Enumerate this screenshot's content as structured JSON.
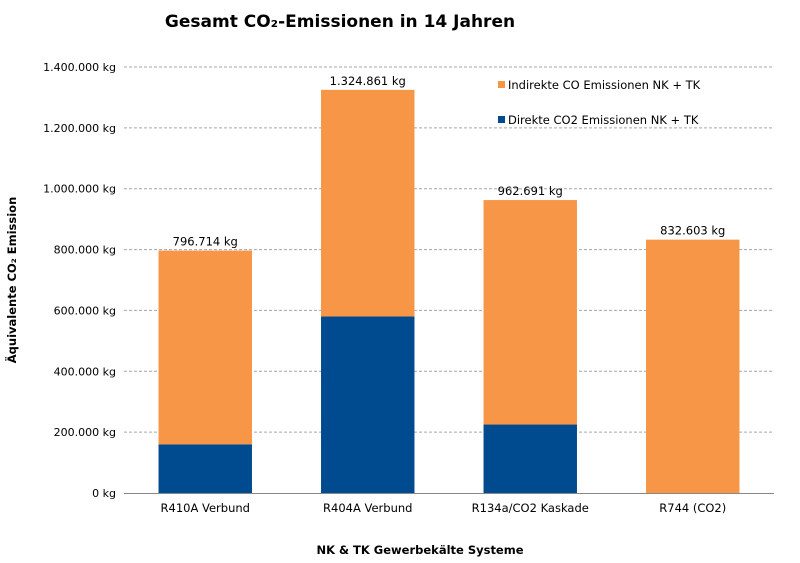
{
  "chart_data": {
    "type": "bar",
    "stacked": true,
    "title": "Gesamt CO₂-Emissionen in 14 Jahren",
    "xlabel": "NK & TK Gewerbekälte Systeme",
    "ylabel": "Äquivalente CO₂ Emission",
    "ylim": [
      0,
      1400000
    ],
    "ytick_values": [
      0,
      200000,
      400000,
      600000,
      800000,
      1000000,
      1200000,
      1400000
    ],
    "ytick_labels": [
      "0 kg",
      "200.000 kg",
      "400.000 kg",
      "600.000 kg",
      "800.000 kg",
      "1.000.000 kg",
      "1.200.000 kg",
      "1.400.000 kg"
    ],
    "grid": true,
    "legend_position": "top-right",
    "categories": [
      "R410A Verbund",
      "R404A Verbund",
      "R134a/CO2 Kaskade",
      "R744 (CO2)"
    ],
    "series": [
      {
        "name": "Direkte CO2 Emissionen NK + TK",
        "color": "#004a8f",
        "values": [
          160000,
          580000,
          225000,
          0
        ]
      },
      {
        "name": "Indirekte CO Emissionen NK + TK",
        "color": "#f79646",
        "values": [
          636714,
          744861,
          737691,
          832603
        ]
      }
    ],
    "totals": [
      796714,
      1324861,
      962691,
      832603
    ],
    "total_labels": [
      "796.714 kg",
      "1.324.861 kg",
      "962.691 kg",
      "832.603 kg"
    ],
    "legend_order": [
      1,
      0
    ]
  }
}
